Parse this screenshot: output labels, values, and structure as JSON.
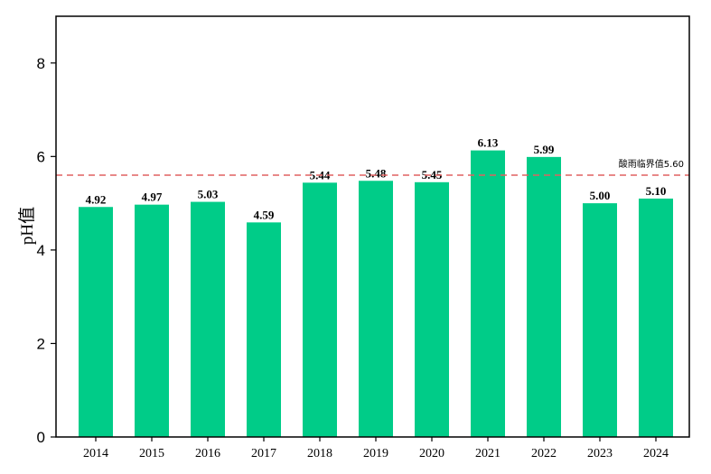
{
  "chart_data": {
    "type": "bar",
    "title": "",
    "xlabel": "",
    "ylabel": "pH值",
    "categories": [
      "2014",
      "2015",
      "2016",
      "2017",
      "2018",
      "2019",
      "2020",
      "2021",
      "2022",
      "2023",
      "2024"
    ],
    "values": [
      4.92,
      4.97,
      5.03,
      4.59,
      5.44,
      5.48,
      5.45,
      6.13,
      5.99,
      5.0,
      5.1
    ],
    "value_labels": [
      "4.92",
      "4.97",
      "5.03",
      "4.59",
      "5.44",
      "5.48",
      "5.45",
      "6.13",
      "5.99",
      "5.00",
      "5.10"
    ],
    "ylim": [
      0,
      9
    ],
    "yticks": [
      "0",
      "2",
      "4",
      "6",
      "8"
    ],
    "ytick_values": [
      0,
      2,
      4,
      6,
      8
    ],
    "bar_color": "#00cc88",
    "grid": false,
    "reference_line": {
      "value": 5.6,
      "label": "酸雨临界值5.60",
      "color": "#e06060",
      "style": "dashed"
    }
  }
}
